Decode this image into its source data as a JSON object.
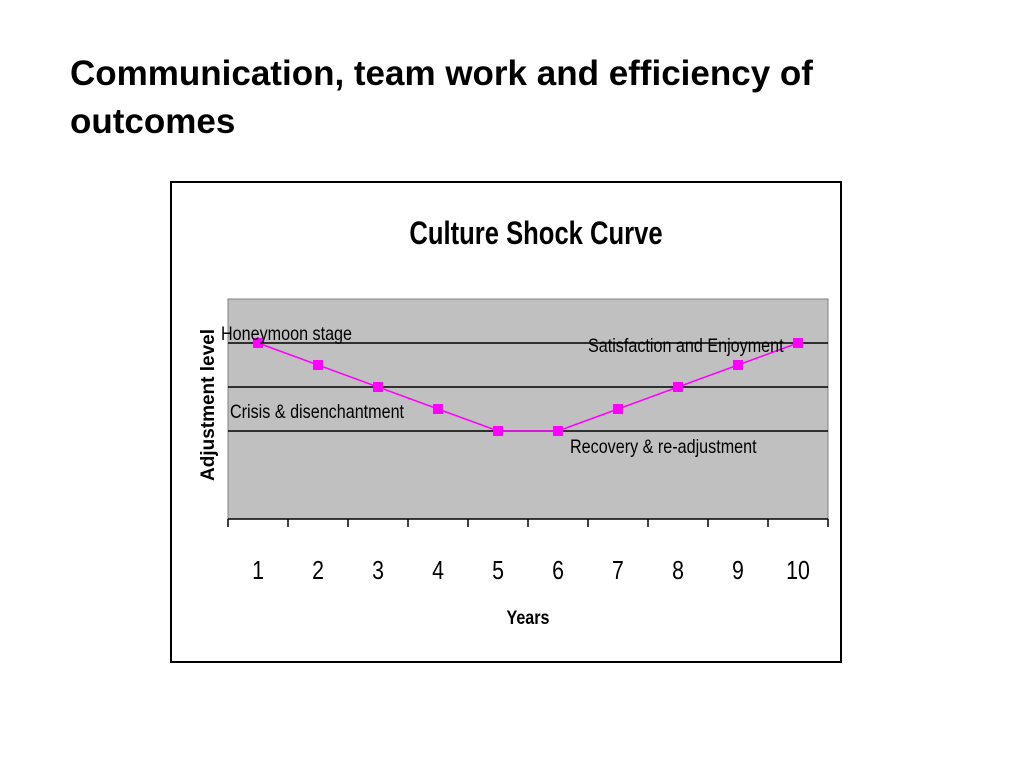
{
  "slide": {
    "title": "Communication, team work and efficiency of outcomes"
  },
  "chart_data": {
    "type": "line",
    "title": "Culture Shock Curve",
    "xlabel": "Years",
    "ylabel": "Adjustment level",
    "categories": [
      "1",
      "2",
      "3",
      "4",
      "5",
      "6",
      "7",
      "8",
      "9",
      "10"
    ],
    "series": [
      {
        "values": [
          4,
          3.5,
          3,
          2.5,
          2,
          2,
          2.5,
          3,
          3.5,
          4
        ],
        "color": "#ff00ff"
      }
    ],
    "ylim": [
      0,
      5
    ],
    "gridlines": [
      2,
      3,
      4
    ],
    "plot_background": "#c0c0c0",
    "grid": true,
    "legend": "none",
    "annotations": [
      "Honeymoon stage",
      "Crisis & disenchantment",
      "Recovery & re-adjustment",
      "Satisfaction and Enjoyment"
    ]
  }
}
